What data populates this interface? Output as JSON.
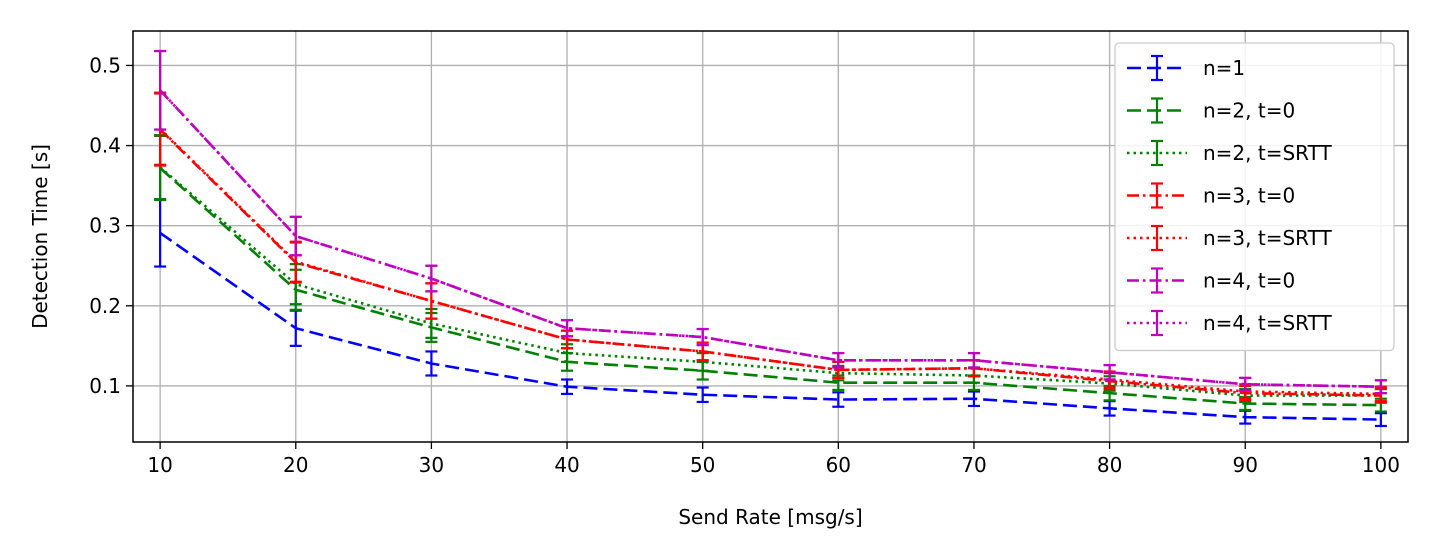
{
  "chart_data": {
    "type": "line",
    "title": "",
    "xlabel": "Send Rate [msg/s]",
    "ylabel": "Detection Time [s]",
    "x": [
      10,
      20,
      30,
      40,
      50,
      60,
      70,
      80,
      90,
      100
    ],
    "xticks": [
      "10",
      "20",
      "30",
      "40",
      "50",
      "60",
      "70",
      "80",
      "90",
      "100"
    ],
    "yticks": [
      "0.1",
      "0.2",
      "0.3",
      "0.4",
      "0.5"
    ],
    "xlim": [
      8,
      102
    ],
    "ylim": [
      0.03,
      0.543
    ],
    "grid": true,
    "legend_position": "top-right",
    "series": [
      {
        "name": "n=1",
        "color": "#0000ff",
        "dash": "dashed",
        "values": [
          0.291,
          0.172,
          0.128,
          0.099,
          0.089,
          0.083,
          0.084,
          0.072,
          0.061,
          0.058
        ],
        "errors": [
          0.042,
          0.022,
          0.015,
          0.009,
          0.009,
          0.009,
          0.009,
          0.009,
          0.008,
          0.008
        ]
      },
      {
        "name": "n=2, t=0",
        "color": "#008000",
        "dash": "dashed",
        "values": [
          0.372,
          0.22,
          0.173,
          0.13,
          0.119,
          0.104,
          0.104,
          0.091,
          0.078,
          0.076
        ],
        "errors": [
          0.04,
          0.025,
          0.018,
          0.011,
          0.011,
          0.009,
          0.009,
          0.009,
          0.008,
          0.008
        ]
      },
      {
        "name": "n=2, t=SRTT",
        "color": "#008000",
        "dash": "dotted",
        "values": [
          0.373,
          0.227,
          0.178,
          0.141,
          0.13,
          0.116,
          0.113,
          0.103,
          0.088,
          0.088
        ],
        "errors": [
          0.04,
          0.025,
          0.018,
          0.011,
          0.011,
          0.009,
          0.009,
          0.009,
          0.008,
          0.008
        ]
      },
      {
        "name": "n=3, t=0",
        "color": "#ff0000",
        "dash": "dashdot",
        "values": [
          0.42,
          0.254,
          0.206,
          0.158,
          0.143,
          0.12,
          0.122,
          0.106,
          0.091,
          0.088
        ],
        "errors": [
          0.045,
          0.025,
          0.022,
          0.011,
          0.011,
          0.01,
          0.01,
          0.01,
          0.009,
          0.009
        ]
      },
      {
        "name": "n=3, t=SRTT",
        "color": "#ff0000",
        "dash": "dotted",
        "values": [
          0.421,
          0.255,
          0.206,
          0.158,
          0.143,
          0.12,
          0.122,
          0.108,
          0.093,
          0.09
        ],
        "errors": [
          0.045,
          0.025,
          0.022,
          0.011,
          0.011,
          0.01,
          0.01,
          0.01,
          0.009,
          0.009
        ]
      },
      {
        "name": "n=4, t=0",
        "color": "#bf00bf",
        "dash": "dashdot",
        "values": [
          0.469,
          0.287,
          0.234,
          0.172,
          0.161,
          0.132,
          0.132,
          0.117,
          0.102,
          0.099
        ],
        "errors": [
          0.049,
          0.024,
          0.016,
          0.01,
          0.01,
          0.009,
          0.009,
          0.009,
          0.008,
          0.008
        ]
      },
      {
        "name": "n=4, t=SRTT",
        "color": "#bf00bf",
        "dash": "dotted",
        "values": [
          0.469,
          0.287,
          0.234,
          0.172,
          0.161,
          0.132,
          0.132,
          0.117,
          0.102,
          0.099
        ],
        "errors": [
          0.049,
          0.024,
          0.016,
          0.01,
          0.01,
          0.009,
          0.009,
          0.009,
          0.008,
          0.008
        ]
      }
    ]
  }
}
